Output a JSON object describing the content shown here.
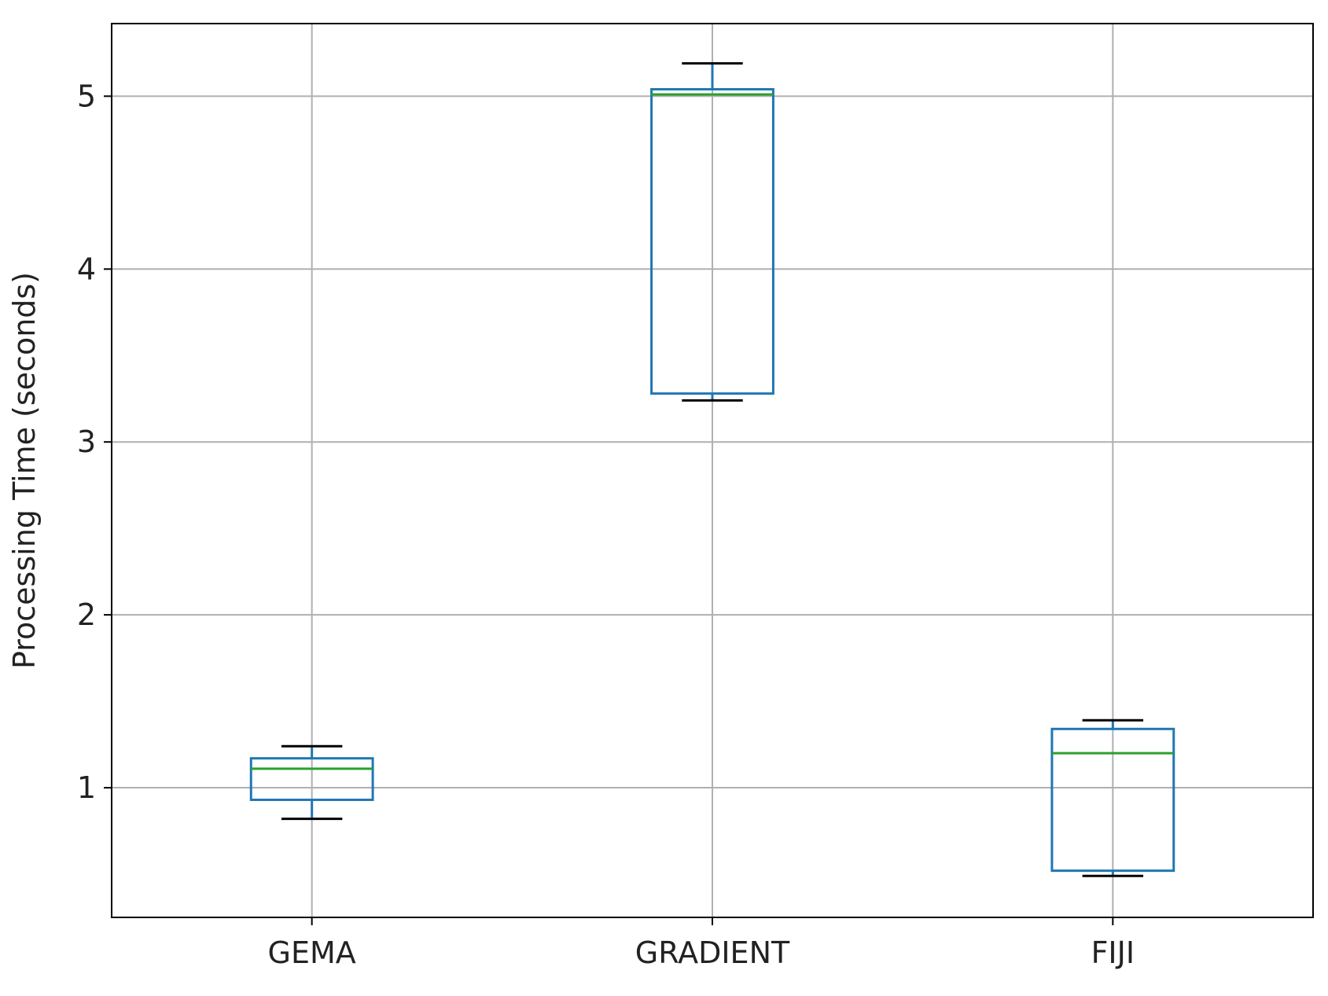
{
  "chart_data": {
    "type": "box",
    "title": "",
    "xlabel": "",
    "ylabel": "Processing Time (seconds)",
    "categories": [
      "GEMA",
      "GRADIENT",
      "FIJI"
    ],
    "ylim": [
      0.25,
      5.42
    ],
    "yticks": [
      1,
      2,
      3,
      4,
      5
    ],
    "ytick_labels": [
      "1",
      "2",
      "3",
      "4",
      "5"
    ],
    "grid": true,
    "legend": "none",
    "boxes": [
      {
        "category": "GEMA",
        "whisker_low": 0.82,
        "q1": 0.93,
        "median": 1.11,
        "q3": 1.17,
        "whisker_high": 1.24
      },
      {
        "category": "GRADIENT",
        "whisker_low": 3.24,
        "q1": 3.28,
        "median": 5.01,
        "q3": 5.04,
        "whisker_high": 5.19
      },
      {
        "category": "FIJI",
        "whisker_low": 0.49,
        "q1": 0.52,
        "median": 1.2,
        "q3": 1.34,
        "whisker_high": 1.39
      }
    ],
    "colors": {
      "box": "#1f77b4",
      "median": "#2ca02c",
      "whisker": "#1f77b4",
      "cap": "#000000",
      "grid": "#b0b0b0",
      "axes": "#000000"
    }
  }
}
